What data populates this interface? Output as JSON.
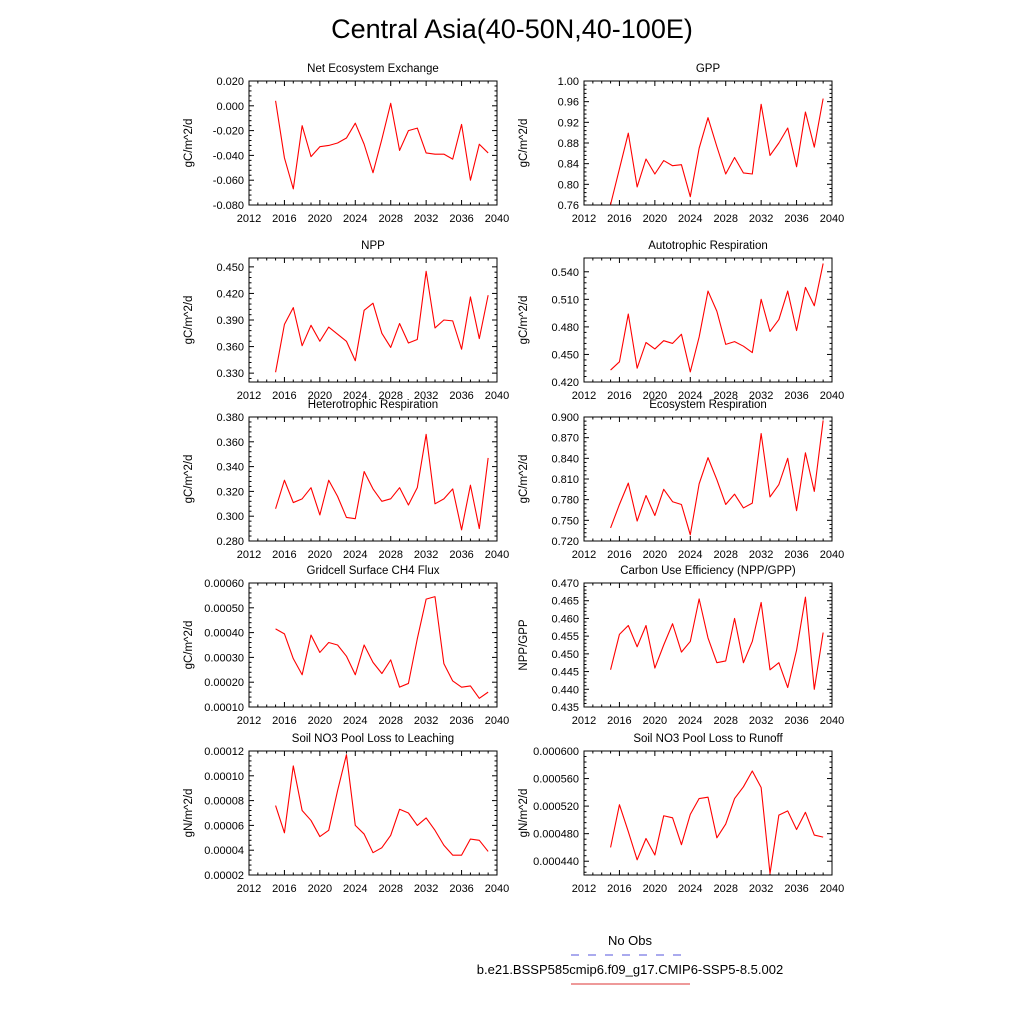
{
  "figure": {
    "title": "Central Asia(40-50N,40-100E)",
    "legend": [
      {
        "label": "No Obs",
        "color": "#5555dd",
        "style": "dashed"
      },
      {
        "label": "b.e21.BSSP585cmip6.f09_g17.CMIP6-SSP5-8.5.002",
        "color": "#dd3333",
        "style": "solid"
      }
    ]
  },
  "chart_data": [
    {
      "type": "line",
      "title": "Net Ecosystem Exchange",
      "xlabel": "",
      "ylabel": "gC/m^2/d",
      "xlim": [
        2012,
        2040
      ],
      "ylim": [
        -0.08,
        0.02
      ],
      "xticks": [
        "2012",
        "2016",
        "2020",
        "2024",
        "2028",
        "2032",
        "2036",
        "2040"
      ],
      "yticks": [
        "-0.080",
        "-0.060",
        "-0.040",
        "-0.020",
        "0.000",
        "0.020"
      ],
      "series": [
        {
          "color": "#ff0000",
          "x": [
            2015,
            2016,
            2017,
            2018,
            2019,
            2020,
            2021,
            2022,
            2023,
            2024,
            2025,
            2026,
            2027,
            2028,
            2029,
            2030,
            2031,
            2032,
            2033,
            2034,
            2035,
            2036,
            2037,
            2038,
            2039
          ],
          "values": [
            0.004,
            -0.042,
            -0.067,
            -0.016,
            -0.041,
            -0.033,
            -0.032,
            -0.03,
            -0.026,
            -0.014,
            -0.031,
            -0.054,
            -0.027,
            0.002,
            -0.036,
            -0.02,
            -0.018,
            -0.038,
            -0.039,
            -0.039,
            -0.043,
            -0.015,
            -0.06,
            -0.031,
            -0.038
          ]
        }
      ]
    },
    {
      "type": "line",
      "title": "GPP",
      "xlabel": "",
      "ylabel": "gC/m^2/d",
      "xlim": [
        2012,
        2040
      ],
      "ylim": [
        0.76,
        1.0
      ],
      "xticks": [
        "2012",
        "2016",
        "2020",
        "2024",
        "2028",
        "2032",
        "2036",
        "2040"
      ],
      "yticks": [
        "0.76",
        "0.80",
        "0.84",
        "0.88",
        "0.92",
        "0.96",
        "1.00"
      ],
      "series": [
        {
          "color": "#ff0000",
          "x": [
            2015,
            2016,
            2017,
            2018,
            2019,
            2020,
            2021,
            2022,
            2023,
            2024,
            2025,
            2026,
            2027,
            2028,
            2029,
            2030,
            2031,
            2032,
            2033,
            2034,
            2035,
            2036,
            2037,
            2038,
            2039
          ],
          "values": [
            0.761,
            0.83,
            0.899,
            0.795,
            0.849,
            0.82,
            0.846,
            0.836,
            0.838,
            0.776,
            0.87,
            0.929,
            0.873,
            0.82,
            0.852,
            0.822,
            0.82,
            0.955,
            0.856,
            0.88,
            0.909,
            0.834,
            0.94,
            0.872,
            0.966
          ]
        }
      ]
    },
    {
      "type": "line",
      "title": "NPP",
      "xlabel": "",
      "ylabel": "gC/m^2/d",
      "xlim": [
        2012,
        2040
      ],
      "ylim": [
        0.32,
        0.46
      ],
      "xticks": [
        "2012",
        "2016",
        "2020",
        "2024",
        "2028",
        "2032",
        "2036",
        "2040"
      ],
      "yticks": [
        "0.330",
        "0.360",
        "0.390",
        "0.420",
        "0.450"
      ],
      "series": [
        {
          "color": "#ff0000",
          "x": [
            2015,
            2016,
            2017,
            2018,
            2019,
            2020,
            2021,
            2022,
            2023,
            2024,
            2025,
            2026,
            2027,
            2028,
            2029,
            2030,
            2031,
            2032,
            2033,
            2034,
            2035,
            2036,
            2037,
            2038,
            2039
          ],
          "values": [
            0.331,
            0.385,
            0.404,
            0.361,
            0.384,
            0.366,
            0.382,
            0.374,
            0.366,
            0.344,
            0.401,
            0.409,
            0.375,
            0.359,
            0.386,
            0.364,
            0.368,
            0.445,
            0.381,
            0.39,
            0.389,
            0.357,
            0.416,
            0.369,
            0.418
          ]
        }
      ]
    },
    {
      "type": "line",
      "title": "Autotrophic Respiration",
      "xlabel": "",
      "ylabel": "gC/m^2/d",
      "xlim": [
        2012,
        2040
      ],
      "ylim": [
        0.42,
        0.555
      ],
      "xticks": [
        "2012",
        "2016",
        "2020",
        "2024",
        "2028",
        "2032",
        "2036",
        "2040"
      ],
      "yticks": [
        "0.420",
        "0.450",
        "0.480",
        "0.510",
        "0.540"
      ],
      "series": [
        {
          "color": "#ff0000",
          "x": [
            2015,
            2016,
            2017,
            2018,
            2019,
            2020,
            2021,
            2022,
            2023,
            2024,
            2025,
            2026,
            2027,
            2028,
            2029,
            2030,
            2031,
            2032,
            2033,
            2034,
            2035,
            2036,
            2037,
            2038,
            2039
          ],
          "values": [
            0.433,
            0.442,
            0.494,
            0.435,
            0.463,
            0.456,
            0.465,
            0.462,
            0.472,
            0.431,
            0.469,
            0.519,
            0.497,
            0.461,
            0.464,
            0.459,
            0.452,
            0.51,
            0.475,
            0.488,
            0.519,
            0.476,
            0.523,
            0.503,
            0.549
          ]
        }
      ]
    },
    {
      "type": "line",
      "title": "Heterotrophic Respiration",
      "xlabel": "",
      "ylabel": "gC/m^2/d",
      "xlim": [
        2012,
        2040
      ],
      "ylim": [
        0.28,
        0.38
      ],
      "xticks": [
        "2012",
        "2016",
        "2020",
        "2024",
        "2028",
        "2032",
        "2036",
        "2040"
      ],
      "yticks": [
        "0.280",
        "0.300",
        "0.320",
        "0.340",
        "0.360",
        "0.380"
      ],
      "series": [
        {
          "color": "#ff0000",
          "x": [
            2015,
            2016,
            2017,
            2018,
            2019,
            2020,
            2021,
            2022,
            2023,
            2024,
            2025,
            2026,
            2027,
            2028,
            2029,
            2030,
            2031,
            2032,
            2033,
            2034,
            2035,
            2036,
            2037,
            2038,
            2039
          ],
          "values": [
            0.306,
            0.329,
            0.311,
            0.314,
            0.323,
            0.301,
            0.329,
            0.316,
            0.299,
            0.298,
            0.336,
            0.322,
            0.312,
            0.314,
            0.323,
            0.309,
            0.323,
            0.366,
            0.31,
            0.314,
            0.322,
            0.289,
            0.325,
            0.29,
            0.347
          ]
        }
      ]
    },
    {
      "type": "line",
      "title": "Ecosystem Respiration",
      "xlabel": "",
      "ylabel": "gC/m^2/d",
      "xlim": [
        2012,
        2040
      ],
      "ylim": [
        0.72,
        0.9
      ],
      "xticks": [
        "2012",
        "2016",
        "2020",
        "2024",
        "2028",
        "2032",
        "2036",
        "2040"
      ],
      "yticks": [
        "0.720",
        "0.750",
        "0.780",
        "0.810",
        "0.840",
        "0.870",
        "0.900"
      ],
      "series": [
        {
          "color": "#ff0000",
          "x": [
            2015,
            2016,
            2017,
            2018,
            2019,
            2020,
            2021,
            2022,
            2023,
            2024,
            2025,
            2026,
            2027,
            2028,
            2029,
            2030,
            2031,
            2032,
            2033,
            2034,
            2035,
            2036,
            2037,
            2038,
            2039
          ],
          "values": [
            0.739,
            0.773,
            0.804,
            0.749,
            0.786,
            0.757,
            0.795,
            0.777,
            0.773,
            0.729,
            0.803,
            0.841,
            0.809,
            0.773,
            0.788,
            0.768,
            0.775,
            0.876,
            0.784,
            0.802,
            0.84,
            0.764,
            0.848,
            0.792,
            0.895
          ]
        }
      ]
    },
    {
      "type": "line",
      "title": "Gridcell Surface CH4 Flux",
      "xlabel": "",
      "ylabel": "gC/m^2/d",
      "xlim": [
        2012,
        2040
      ],
      "ylim": [
        0.0001,
        0.0006
      ],
      "xticks": [
        "2012",
        "2016",
        "2020",
        "2024",
        "2028",
        "2032",
        "2036",
        "2040"
      ],
      "yticks": [
        "0.00010",
        "0.00020",
        "0.00030",
        "0.00040",
        "0.00050",
        "0.00060"
      ],
      "series": [
        {
          "color": "#ff0000",
          "x": [
            2015,
            2016,
            2017,
            2018,
            2019,
            2020,
            2021,
            2022,
            2023,
            2024,
            2025,
            2026,
            2027,
            2028,
            2029,
            2030,
            2031,
            2032,
            2033,
            2034,
            2035,
            2036,
            2037,
            2038,
            2039
          ],
          "values": [
            0.000415,
            0.000395,
            0.000295,
            0.00023,
            0.00039,
            0.00032,
            0.00036,
            0.00035,
            0.000305,
            0.00023,
            0.00035,
            0.00028,
            0.000235,
            0.00029,
            0.00018,
            0.000195,
            0.000375,
            0.000535,
            0.000545,
            0.000275,
            0.000205,
            0.00018,
            0.000185,
            0.000135,
            0.00016
          ]
        }
      ]
    },
    {
      "type": "line",
      "title": "Carbon Use Efficiency (NPP/GPP)",
      "xlabel": "",
      "ylabel": "NPP/GPP",
      "xlim": [
        2012,
        2040
      ],
      "ylim": [
        0.435,
        0.47
      ],
      "xticks": [
        "2012",
        "2016",
        "2020",
        "2024",
        "2028",
        "2032",
        "2036",
        "2040"
      ],
      "yticks": [
        "0.435",
        "0.440",
        "0.445",
        "0.450",
        "0.455",
        "0.460",
        "0.465",
        "0.470"
      ],
      "series": [
        {
          "color": "#ff0000",
          "x": [
            2015,
            2016,
            2017,
            2018,
            2019,
            2020,
            2021,
            2022,
            2023,
            2024,
            2025,
            2026,
            2027,
            2028,
            2029,
            2030,
            2031,
            2032,
            2033,
            2034,
            2035,
            2036,
            2037,
            2038,
            2039
          ],
          "values": [
            0.4455,
            0.4555,
            0.458,
            0.452,
            0.458,
            0.446,
            0.4525,
            0.4585,
            0.4505,
            0.4535,
            0.4655,
            0.4545,
            0.4475,
            0.448,
            0.46,
            0.4475,
            0.4535,
            0.4645,
            0.4455,
            0.4475,
            0.4405,
            0.451,
            0.466,
            0.44,
            0.456
          ]
        }
      ]
    },
    {
      "type": "line",
      "title": "Soil NO3 Pool Loss to Leaching",
      "xlabel": "",
      "ylabel": "gN/m^2/d",
      "xlim": [
        2012,
        2040
      ],
      "ylim": [
        2e-05,
        0.00012
      ],
      "xticks": [
        "2012",
        "2016",
        "2020",
        "2024",
        "2028",
        "2032",
        "2036",
        "2040"
      ],
      "yticks": [
        "0.00002",
        "0.00004",
        "0.00006",
        "0.00008",
        "0.00010",
        "0.00012"
      ],
      "series": [
        {
          "color": "#ff0000",
          "x": [
            2015,
            2016,
            2017,
            2018,
            2019,
            2020,
            2021,
            2022,
            2023,
            2024,
            2025,
            2026,
            2027,
            2028,
            2029,
            2030,
            2031,
            2032,
            2033,
            2034,
            2035,
            2036,
            2037,
            2038,
            2039
          ],
          "values": [
            7.6e-05,
            5.4e-05,
            0.000108,
            7.2e-05,
            6.4e-05,
            5.1e-05,
            5.6e-05,
            8.8e-05,
            0.000117,
            6e-05,
            5.3e-05,
            3.8e-05,
            4.2e-05,
            5.2e-05,
            7.3e-05,
            7e-05,
            6e-05,
            6.6e-05,
            5.6e-05,
            4.4e-05,
            3.6e-05,
            3.6e-05,
            4.9e-05,
            4.8e-05,
            3.9e-05
          ]
        }
      ]
    },
    {
      "type": "line",
      "title": "Soil NO3 Pool Loss to Runoff",
      "xlabel": "",
      "ylabel": "gN/m^2/d",
      "xlim": [
        2012,
        2040
      ],
      "ylim": [
        0.00042,
        0.0006
      ],
      "xticks": [
        "2012",
        "2016",
        "2020",
        "2024",
        "2028",
        "2032",
        "2036",
        "2040"
      ],
      "yticks": [
        "0.000440",
        "0.000480",
        "0.000520",
        "0.000560",
        "0.000600"
      ],
      "series": [
        {
          "color": "#ff0000",
          "x": [
            2015,
            2016,
            2017,
            2018,
            2019,
            2020,
            2021,
            2022,
            2023,
            2024,
            2025,
            2026,
            2027,
            2028,
            2029,
            2030,
            2031,
            2032,
            2033,
            2034,
            2035,
            2036,
            2037,
            2038,
            2039
          ],
          "values": [
            0.00046,
            0.000522,
            0.000483,
            0.000442,
            0.000473,
            0.000449,
            0.000506,
            0.000503,
            0.000464,
            0.000508,
            0.000531,
            0.000533,
            0.000474,
            0.000494,
            0.000531,
            0.000548,
            0.000571,
            0.000547,
            0.000422,
            0.000507,
            0.000513,
            0.000486,
            0.000511,
            0.000478,
            0.000475
          ]
        }
      ]
    }
  ]
}
